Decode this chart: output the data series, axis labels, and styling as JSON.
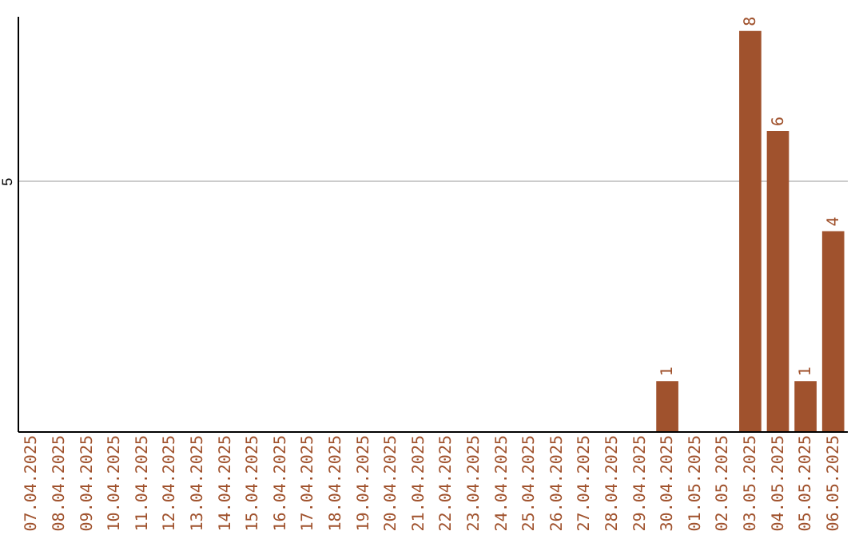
{
  "chart_data": {
    "type": "bar",
    "categories": [
      "07.04.2025",
      "08.04.2025",
      "09.04.2025",
      "10.04.2025",
      "11.04.2025",
      "12.04.2025",
      "13.04.2025",
      "14.04.2025",
      "15.04.2025",
      "16.04.2025",
      "17.04.2025",
      "18.04.2025",
      "19.04.2025",
      "20.04.2025",
      "21.04.2025",
      "22.04.2025",
      "23.04.2025",
      "24.04.2025",
      "25.04.2025",
      "26.04.2025",
      "27.04.2025",
      "28.04.2025",
      "29.04.2025",
      "30.04.2025",
      "01.05.2025",
      "02.05.2025",
      "03.05.2025",
      "04.05.2025",
      "05.05.2025",
      "06.05.2025"
    ],
    "values": [
      null,
      null,
      null,
      null,
      null,
      null,
      null,
      null,
      null,
      null,
      null,
      null,
      null,
      null,
      null,
      null,
      null,
      null,
      null,
      null,
      null,
      null,
      null,
      1,
      null,
      null,
      8,
      6,
      1,
      4
    ],
    "data_labels": true,
    "color": "#a0522d",
    "ylim": [
      0,
      8.3
    ],
    "yticks": [
      5
    ],
    "grid": "y"
  }
}
